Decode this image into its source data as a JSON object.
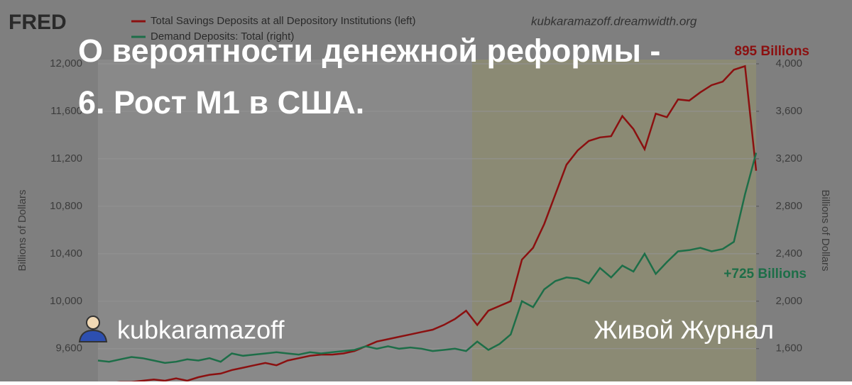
{
  "chart_data": {
    "type": "line",
    "source": "FRED",
    "watermark": "kubkaramazoff.dreamwidth.org",
    "y_label": "Billions of Dollars",
    "y2_label": "Billions of Dollars",
    "ylim": [
      9300,
      12000
    ],
    "y2lim": [
      1300,
      4000
    ],
    "yticks": [
      {
        "value": 9600,
        "label": "9,600"
      },
      {
        "value": 10000,
        "label": "10,000"
      },
      {
        "value": 10400,
        "label": "10,400"
      },
      {
        "value": 10800,
        "label": "10,800"
      },
      {
        "value": 11200,
        "label": "11,200"
      },
      {
        "value": 11600,
        "label": "11,600"
      },
      {
        "value": 12000,
        "label": "12,000"
      }
    ],
    "y2ticks": [
      {
        "value": 1600,
        "label": "1,600"
      },
      {
        "value": 2000,
        "label": "2,000"
      },
      {
        "value": 2400,
        "label": "2,400"
      },
      {
        "value": 2800,
        "label": "2,800"
      },
      {
        "value": 3200,
        "label": "3,200"
      },
      {
        "value": 3600,
        "label": "3,600"
      },
      {
        "value": 4000,
        "label": "4,000"
      }
    ],
    "series": [
      {
        "name": "Total Savings Deposits at all Depository Institutions (left)",
        "color": "#8b1010",
        "values": [
          9300,
          9310,
          9320,
          9320,
          9330,
          9340,
          9330,
          9350,
          9330,
          9360,
          9380,
          9390,
          9420,
          9440,
          9460,
          9480,
          9460,
          9500,
          9520,
          9540,
          9550,
          9550,
          9560,
          9580,
          9620,
          9660,
          9680,
          9700,
          9720,
          9740,
          9760,
          9800,
          9850,
          9920,
          9800,
          9920,
          9960,
          10000,
          10350,
          10450,
          10650,
          10900,
          11150,
          11270,
          11350,
          11380,
          11390,
          11560,
          11450,
          11280,
          11580,
          11550,
          11700,
          11690,
          11760,
          11820,
          11850,
          11950,
          11980,
          11100
        ]
      },
      {
        "name": "Demand Deposits: Total (right)",
        "color": "#1d6e48",
        "axis": "y2",
        "values": [
          1500,
          1490,
          1510,
          1530,
          1520,
          1500,
          1480,
          1490,
          1510,
          1500,
          1520,
          1490,
          1560,
          1540,
          1550,
          1560,
          1570,
          1560,
          1550,
          1570,
          1560,
          1570,
          1580,
          1590,
          1620,
          1600,
          1620,
          1600,
          1610,
          1600,
          1580,
          1590,
          1600,
          1580,
          1660,
          1590,
          1640,
          1720,
          2000,
          1950,
          2100,
          2170,
          2200,
          2190,
          2150,
          2280,
          2200,
          2300,
          2250,
          2400,
          2230,
          2330,
          2420,
          2430,
          2450,
          2420,
          2440,
          2500,
          2900,
          3250
        ]
      }
    ],
    "annotations": [
      "895 Billions",
      "+725 Billions"
    ]
  },
  "overlay": {
    "title_lines": [
      "О вероятности денежной реформы -",
      "6. Рост М1 в США."
    ],
    "author": "kubkaramazoff",
    "site": "Живой Журнал"
  }
}
